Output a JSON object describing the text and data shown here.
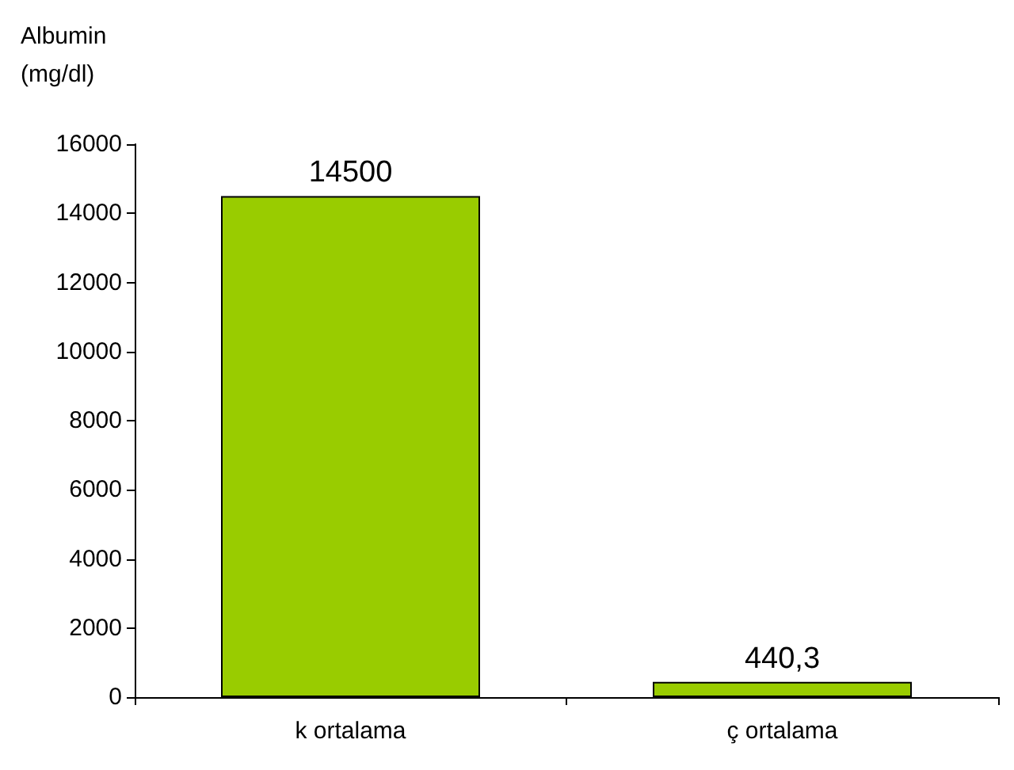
{
  "chart_data": {
    "type": "bar",
    "ylabel": "Albumin\n(mg/dl)",
    "categories": [
      "k ortalama",
      "ç ortalama"
    ],
    "values": [
      14500,
      440.3
    ],
    "value_labels": [
      "14500",
      "440,3"
    ],
    "color": "#99cc00",
    "ylim": [
      0,
      16000
    ],
    "yticks": [
      0,
      2000,
      4000,
      6000,
      8000,
      10000,
      12000,
      14000,
      16000
    ],
    "grid": false
  }
}
